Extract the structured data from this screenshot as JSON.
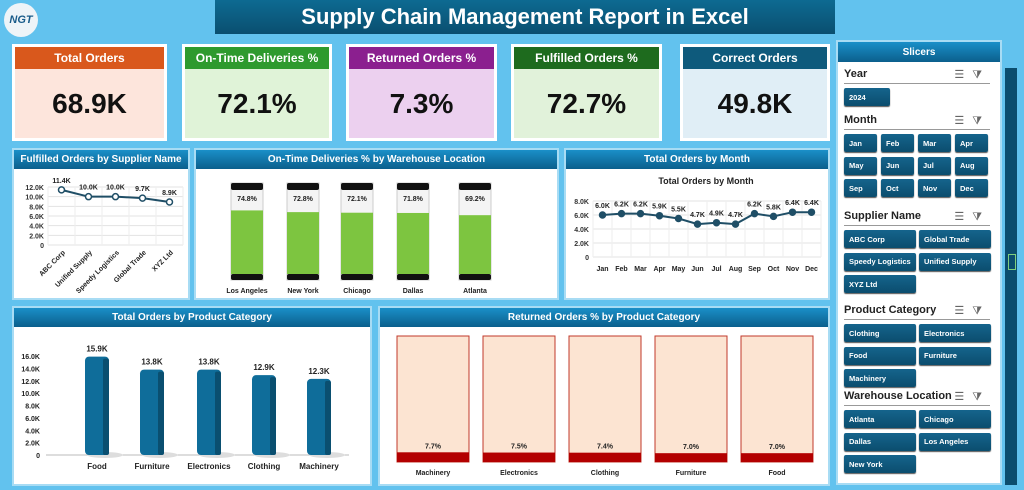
{
  "logo": {
    "text": "NGT"
  },
  "title": "Supply Chain Management Report in Excel",
  "kpis": [
    {
      "label": "Total Orders",
      "value": "68.9K",
      "header_color": "#d9581c",
      "body_color": "#fde5dc"
    },
    {
      "label": "On-Time Deliveries %",
      "value": "72.1%",
      "header_color": "#2e9a2e",
      "body_color": "#e0f3d8"
    },
    {
      "label": "Returned Orders %",
      "value": "7.3%",
      "header_color": "#8b1f8f",
      "body_color": "#ecd0ef"
    },
    {
      "label": "Fulfilled Orders %",
      "value": "72.7%",
      "header_color": "#1e6b1e",
      "body_color": "#e1f2da"
    },
    {
      "label": "Correct Orders",
      "value": "49.8K",
      "header_color": "#0e5a7c",
      "body_color": "#e0eef6"
    }
  ],
  "chart_data": [
    {
      "id": "supplier",
      "type": "line",
      "title": "Fulfilled Orders by Supplier Name",
      "categories": [
        "ABC Corp",
        "Unified Supply",
        "Speedy Logistics",
        "Global Trade",
        "XYZ Ltd"
      ],
      "values": [
        11.4,
        10.0,
        10.0,
        9.7,
        8.9
      ],
      "labels": [
        "11.4K",
        "10.0K",
        "10.0K",
        "9.7K",
        "8.9K"
      ],
      "yticks": [
        "0",
        "2.0K",
        "4.0K",
        "6.0K",
        "8.0K",
        "10.0K",
        "12.0K"
      ],
      "ylim": [
        0,
        12
      ],
      "grid": true
    },
    {
      "id": "warehouse",
      "type": "bar",
      "title": "On-Time Deliveries % by Warehouse Location",
      "categories": [
        "Los Angeles",
        "New York",
        "Chicago",
        "Dallas",
        "Atlanta"
      ],
      "values": [
        74.8,
        72.8,
        72.1,
        71.8,
        69.2
      ],
      "labels": [
        "74.8%",
        "72.8%",
        "72.1%",
        "71.8%",
        "69.2%"
      ],
      "ylim": [
        0,
        100
      ],
      "color": "#7dc540"
    },
    {
      "id": "month",
      "type": "line",
      "title": "Total Orders by Month",
      "subtitle": "Total Orders by Month",
      "categories": [
        "Jan",
        "Feb",
        "Mar",
        "Apr",
        "May",
        "Jun",
        "Jul",
        "Aug",
        "Sep",
        "Oct",
        "Nov",
        "Dec"
      ],
      "values": [
        6.0,
        6.2,
        6.2,
        5.9,
        5.5,
        4.7,
        4.9,
        4.7,
        6.2,
        5.8,
        6.4,
        6.4
      ],
      "labels": [
        "6.0K",
        "6.2K",
        "6.2K",
        "5.9K",
        "5.5K",
        "4.7K",
        "4.9K",
        "4.7K",
        "6.2K",
        "5.8K",
        "6.4K",
        "6.4K"
      ],
      "yticks": [
        "0",
        "2.0K",
        "4.0K",
        "6.0K",
        "8.0K"
      ],
      "ylim": [
        0,
        8
      ],
      "grid": true
    },
    {
      "id": "product",
      "type": "bar",
      "title": "Total Orders by Product Category",
      "categories": [
        "Food",
        "Furniture",
        "Electronics",
        "Clothing",
        "Machinery"
      ],
      "values": [
        15.9,
        13.8,
        13.8,
        12.9,
        12.3
      ],
      "labels": [
        "15.9K",
        "13.8K",
        "13.8K",
        "12.9K",
        "12.3K"
      ],
      "yticks": [
        "0",
        "2.0K",
        "4.0K",
        "6.0K",
        "8.0K",
        "10.0K",
        "12.0K",
        "14.0K",
        "16.0K"
      ],
      "ylim": [
        0,
        16
      ],
      "color": "#0f6d9a"
    },
    {
      "id": "returned",
      "type": "bar",
      "title": "Returned Orders % by Product Category",
      "categories": [
        "Machinery",
        "Electronics",
        "Clothing",
        "Furniture",
        "Food"
      ],
      "values": [
        7.7,
        7.5,
        7.4,
        7.0,
        7.0
      ],
      "labels": [
        "7.7%",
        "7.5%",
        "7.4%",
        "7.0%",
        "7.0%"
      ],
      "ylim": [
        0,
        100
      ],
      "color": "#b30000",
      "background_color": "#fce4d2"
    }
  ],
  "slicers": {
    "title": "Slicers",
    "sections": [
      {
        "name": "Year",
        "items": [
          "2024"
        ]
      },
      {
        "name": "Month",
        "items": [
          "Jan",
          "Feb",
          "Mar",
          "Apr",
          "May",
          "Jun",
          "Jul",
          "Aug",
          "Sep",
          "Oct",
          "Nov",
          "Dec"
        ]
      },
      {
        "name": "Supplier Name",
        "items": [
          "ABC Corp",
          "Global Trade",
          "Speedy Logistics",
          "Unified Supply",
          "XYZ Ltd"
        ]
      },
      {
        "name": "Product Category",
        "items": [
          "Clothing",
          "Electronics",
          "Food",
          "Furniture",
          "Machinery"
        ]
      },
      {
        "name": "Warehouse Location",
        "items": [
          "Atlanta",
          "Chicago",
          "Dallas",
          "Los Angeles",
          "New York"
        ]
      }
    ]
  }
}
